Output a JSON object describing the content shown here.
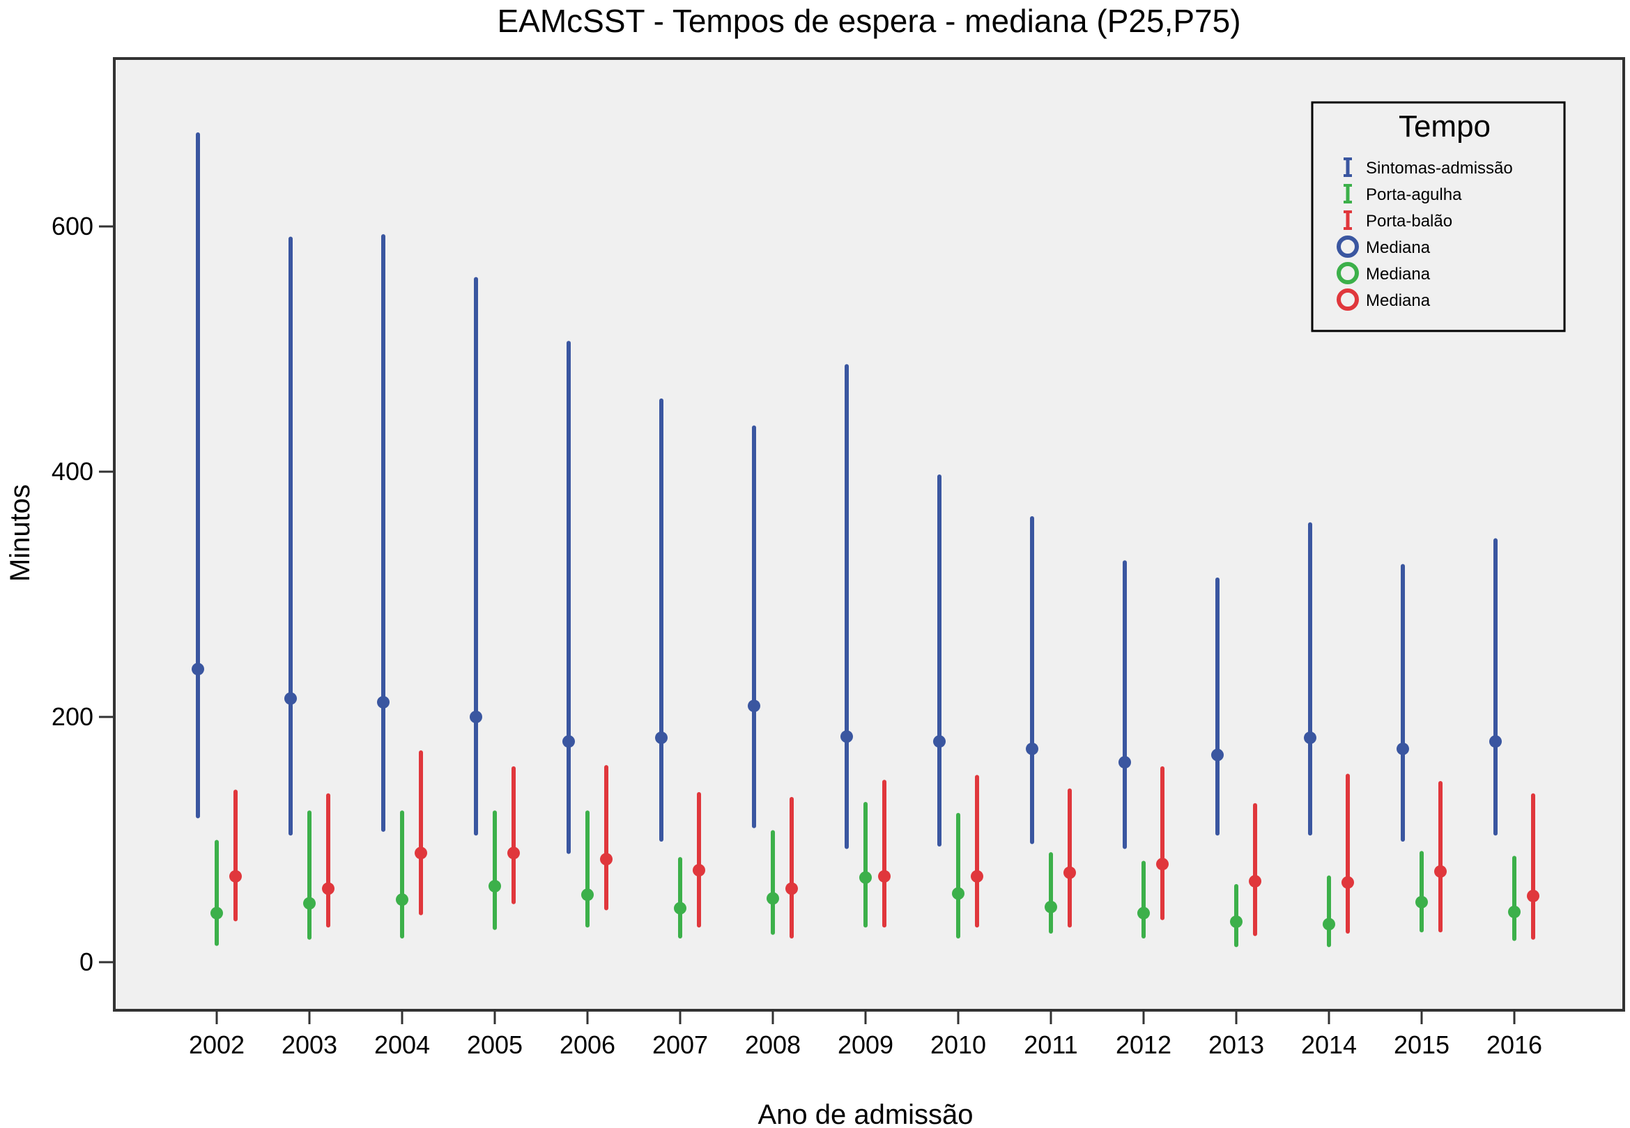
{
  "chart_data": {
    "type": "errorbar",
    "title": "EAMcSST - Tempos de espera - mediana (P25,P75)",
    "xlabel": "Ano de admissão",
    "ylabel": "Minutos",
    "ylim": [
      -40,
      740
    ],
    "yticks": [
      0,
      200,
      400,
      600
    ],
    "categories": [
      "2002",
      "2003",
      "2004",
      "2005",
      "2006",
      "2007",
      "2008",
      "2009",
      "2010",
      "2011",
      "2012",
      "2013",
      "2014",
      "2015",
      "2016"
    ],
    "legend": {
      "title": "Tempo",
      "position": "top-right",
      "entries": [
        {
          "label": "Sintomas-admissão",
          "marker": "errorbar",
          "color": "#3a56a0"
        },
        {
          "label": "Porta-agulha",
          "marker": "errorbar",
          "color": "#3cb04a"
        },
        {
          "label": "Porta-balão",
          "marker": "errorbar",
          "color": "#e0373c"
        },
        {
          "label": "Mediana",
          "marker": "circle",
          "color": "#3a56a0"
        },
        {
          "label": "Mediana",
          "marker": "circle",
          "color": "#3cb04a"
        },
        {
          "label": "Mediana",
          "marker": "circle",
          "color": "#e0373c"
        }
      ]
    },
    "series": [
      {
        "name": "Sintomas-admissão",
        "color": "#3a56a0",
        "median": [
          239,
          215,
          212,
          200,
          180,
          183,
          209,
          184,
          180,
          174,
          163,
          169,
          183,
          174,
          180
        ],
        "p25": [
          119,
          105,
          108,
          105,
          90,
          100,
          111,
          94,
          96,
          98,
          94,
          105,
          105,
          100,
          105
        ],
        "p75": [
          675,
          590,
          592,
          557,
          505,
          458,
          436,
          486,
          396,
          362,
          326,
          312,
          357,
          323,
          344
        ]
      },
      {
        "name": "Porta-agulha",
        "color": "#3cb04a",
        "median": [
          40,
          48,
          51,
          62,
          55,
          44,
          52,
          69,
          56,
          45,
          40,
          33,
          31,
          49,
          41
        ],
        "p25": [
          15,
          20,
          21,
          28,
          30,
          21,
          24,
          30,
          21,
          25,
          21,
          14,
          14,
          26,
          19
        ],
        "p75": [
          98,
          122,
          122,
          122,
          122,
          84,
          106,
          129,
          120,
          88,
          81,
          62,
          69,
          89,
          85
        ]
      },
      {
        "name": "Porta-balão",
        "color": "#e0373c",
        "median": [
          70,
          60,
          89,
          89,
          84,
          75,
          60,
          70,
          70,
          73,
          80,
          66,
          65,
          74,
          54
        ],
        "p25": [
          35,
          30,
          40,
          49,
          44,
          30,
          21,
          30,
          30,
          30,
          36,
          23,
          25,
          26,
          20
        ],
        "p75": [
          139,
          136,
          171,
          158,
          159,
          137,
          133,
          147,
          151,
          140,
          158,
          128,
          152,
          146,
          136
        ]
      }
    ]
  }
}
